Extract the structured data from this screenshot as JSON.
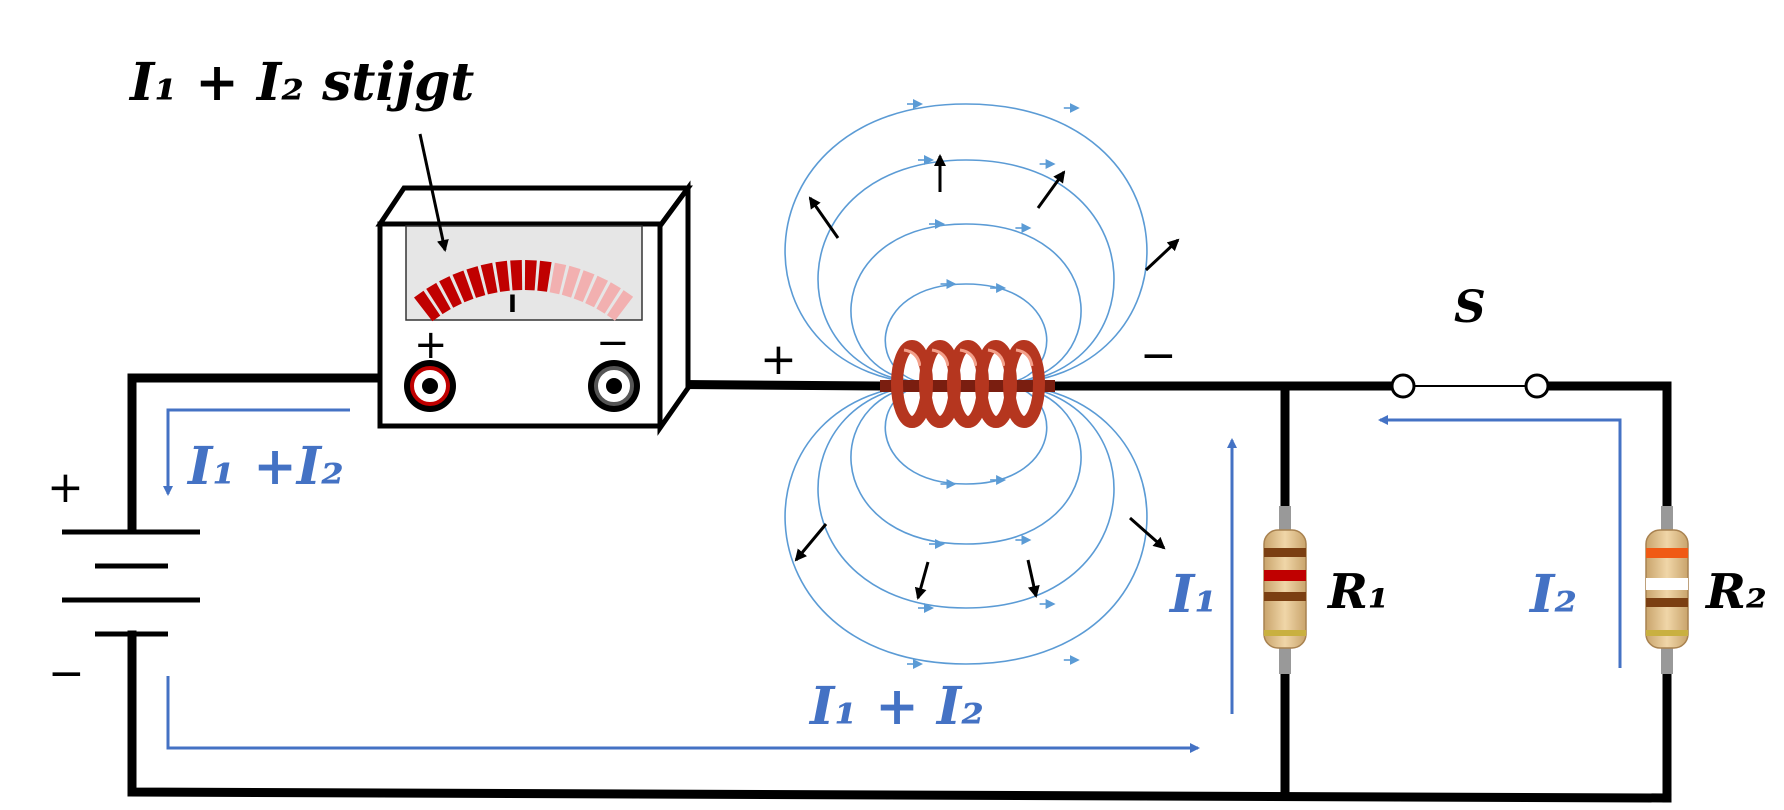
{
  "meter_label": "I₁ + I₂ stijgt",
  "meter_scale_mark": "I",
  "meter_plus": "+",
  "meter_minus": "−",
  "battery_plus": "+",
  "battery_minus": "−",
  "coil_plus": "+",
  "coil_minus": "−",
  "switch_label": "S",
  "current_total_left": "I₁ +I₂",
  "current_total_bottom": "I₁ + I₂",
  "current_1": "I₁",
  "current_2": "I₂",
  "resistor_1": "R₁",
  "resistor_2": "R₂",
  "colors": {
    "wire": "#000000",
    "current_arrows": "#4472c4",
    "field_lines": "#5b9bd5",
    "coil": "#b5361f",
    "meter_active": "#c00000",
    "meter_inactive": "#f2b0b0"
  }
}
